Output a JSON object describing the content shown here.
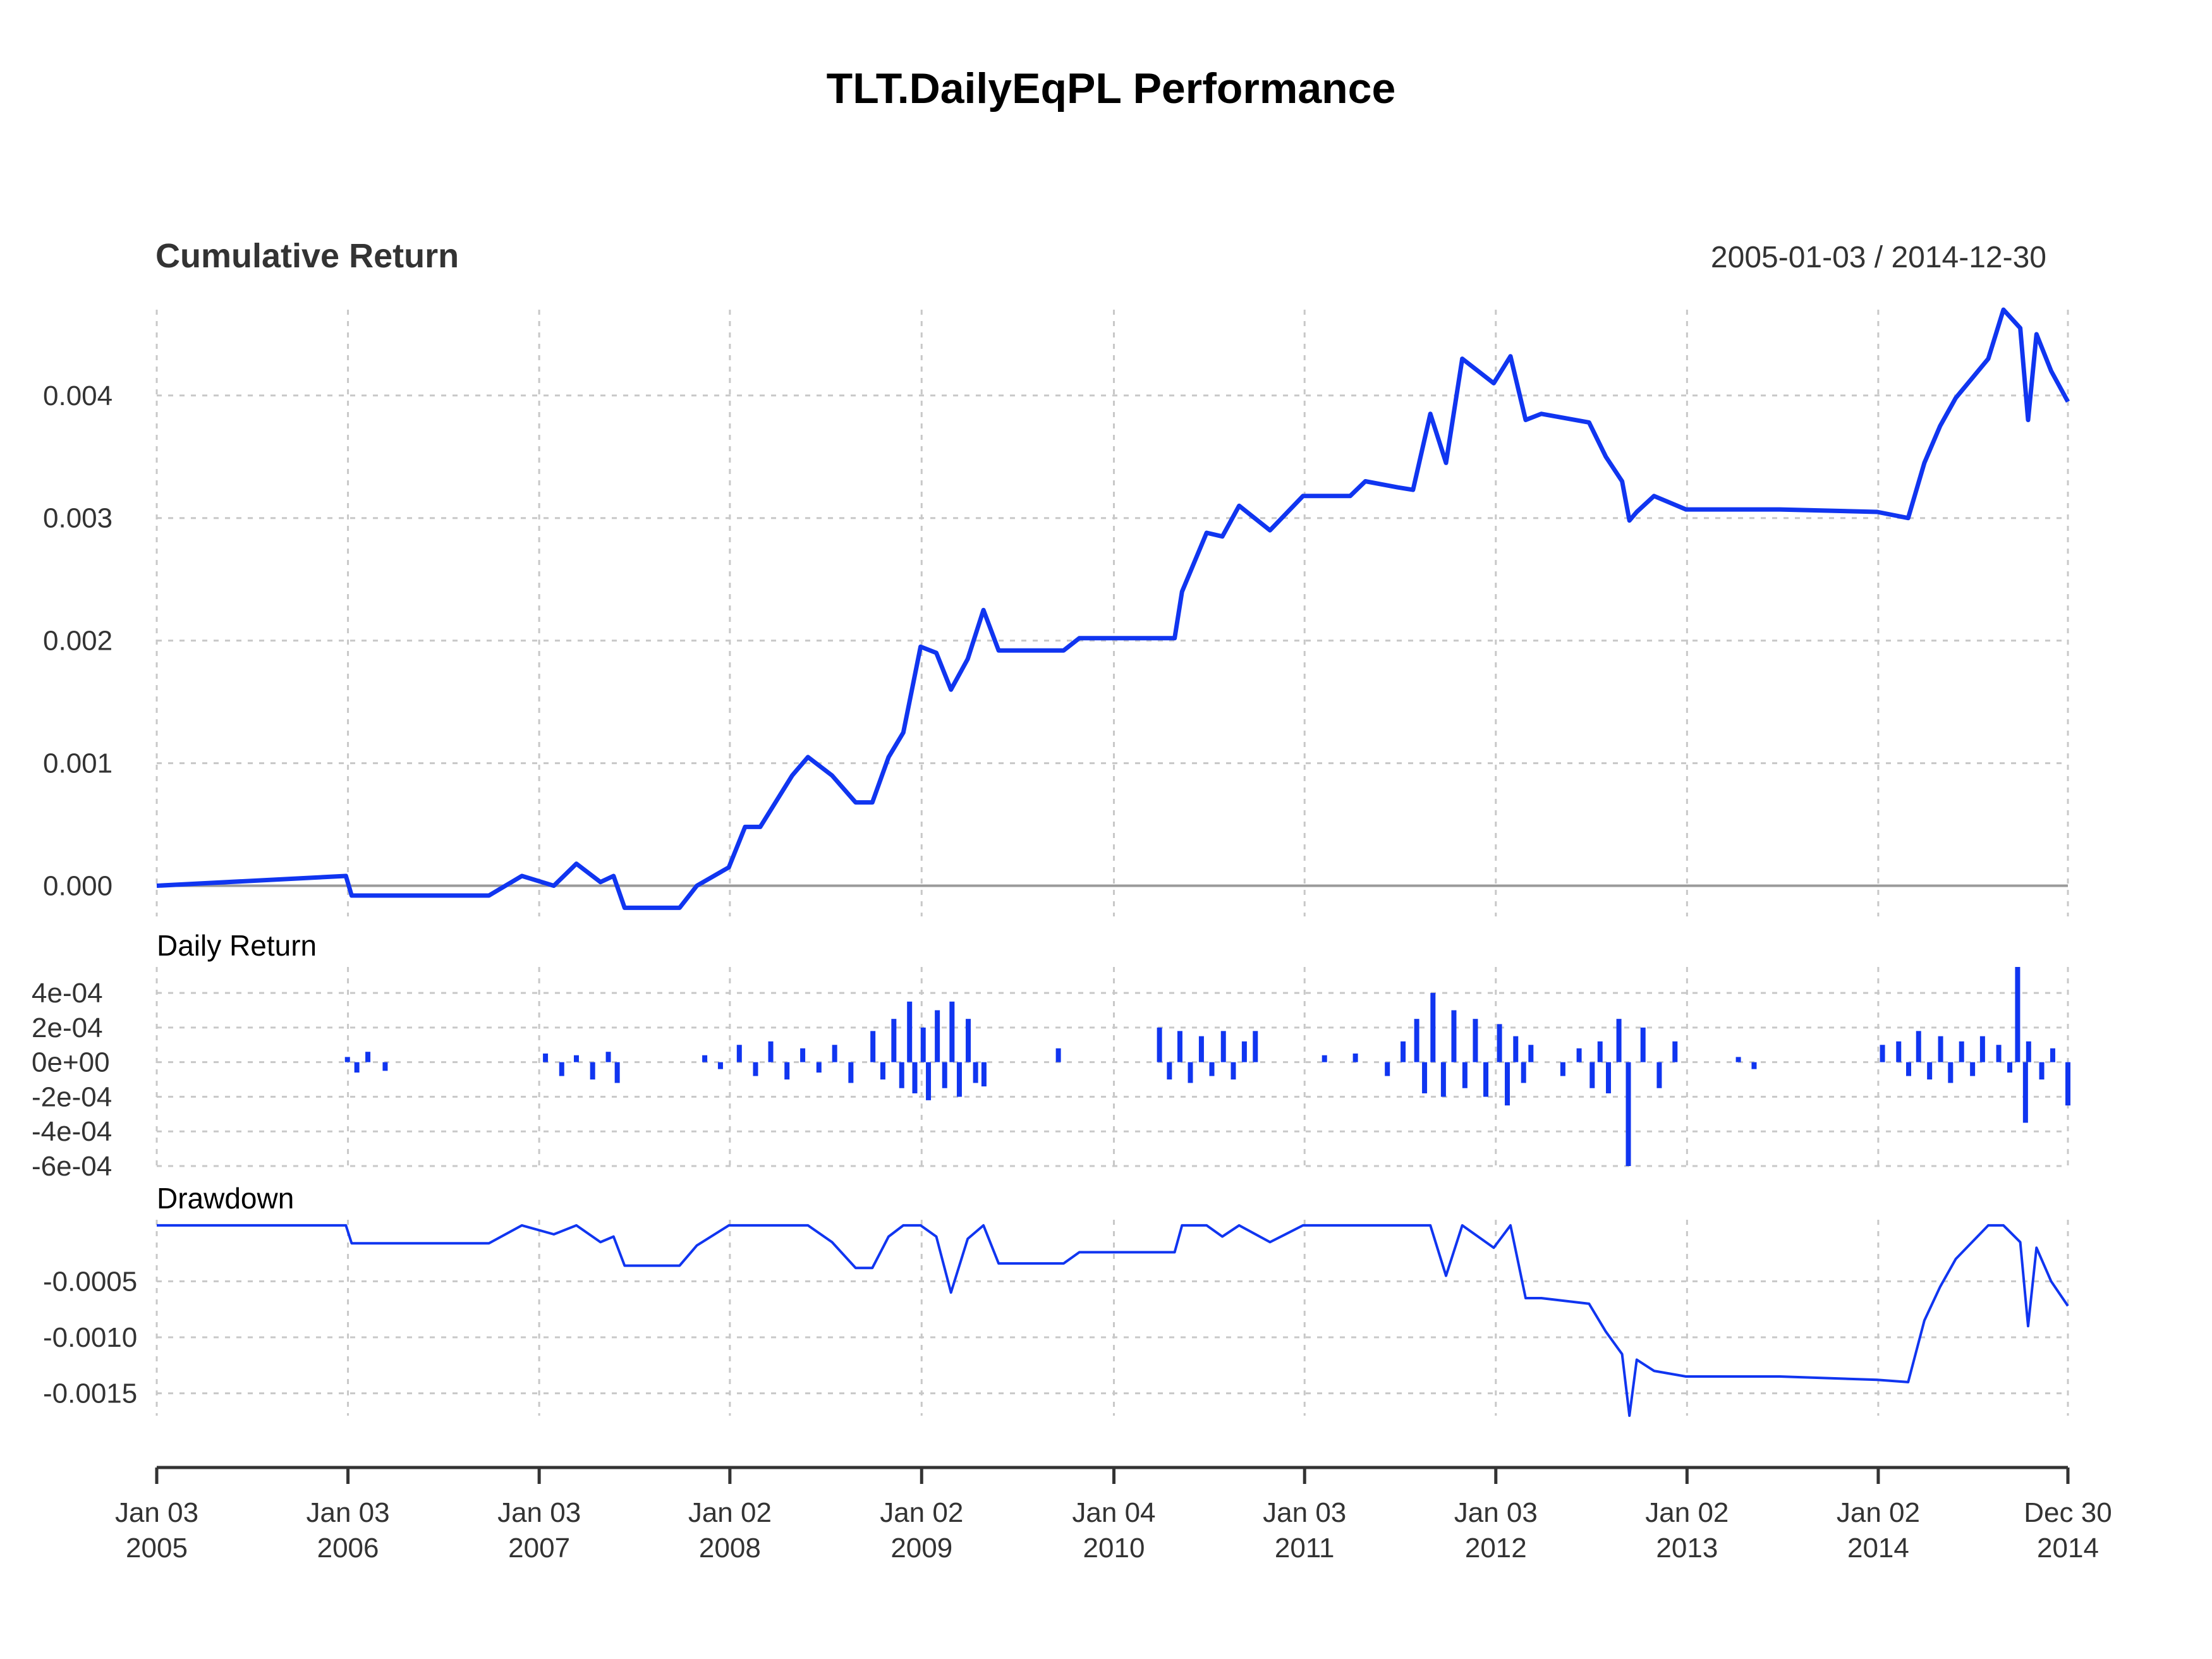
{
  "title": "TLT.DailyEqPL Performance",
  "colors": {
    "series": "#1035f0",
    "grid": "#c8c8c8",
    "zero": "#9a9a9a",
    "text": "#333333"
  },
  "panels": {
    "cumulative": {
      "title": "Cumulative Return",
      "date_range": "2005-01-03 / 2014-12-30"
    },
    "daily": {
      "title": "Daily Return"
    },
    "drawdown": {
      "title": "Drawdown"
    }
  },
  "chart_data": [
    {
      "type": "line",
      "title": "Cumulative Return",
      "series_color": "#1035f0",
      "x": [
        "2005-01-03",
        "2005-12-30",
        "2006-01-10",
        "2006-03-31",
        "2006-06-30",
        "2006-09-29",
        "2006-12-01",
        "2007-01-31",
        "2007-03-15",
        "2007-04-30",
        "2007-05-25",
        "2007-06-15",
        "2007-07-15",
        "2007-09-28",
        "2007-10-31",
        "2007-12-31",
        "2008-01-31",
        "2008-02-29",
        "2008-04-30",
        "2008-05-30",
        "2008-07-15",
        "2008-08-29",
        "2008-09-30",
        "2008-10-31",
        "2008-11-28",
        "2008-12-31",
        "2009-01-30",
        "2009-02-27",
        "2009-03-31",
        "2009-04-30",
        "2009-05-29",
        "2009-09-30",
        "2009-10-30",
        "2010-01-04",
        "2010-04-30",
        "2010-05-14",
        "2010-06-30",
        "2010-07-30",
        "2010-08-31",
        "2010-10-29",
        "2010-12-31",
        "2011-03-31",
        "2011-04-29",
        "2011-06-30",
        "2011-07-29",
        "2011-08-31",
        "2011-09-30",
        "2011-10-31",
        "2011-12-30",
        "2012-01-31",
        "2012-02-29",
        "2012-03-30",
        "2012-06-29",
        "2012-07-31",
        "2012-08-31",
        "2012-09-14",
        "2012-09-28",
        "2012-10-31",
        "2012-12-31",
        "2013-03-29",
        "2013-06-28",
        "2013-12-31",
        "2014-02-28",
        "2014-03-31",
        "2014-04-30",
        "2014-05-30",
        "2014-07-31",
        "2014-08-29",
        "2014-09-30",
        "2014-10-15",
        "2014-10-31",
        "2014-11-28",
        "2014-12-30"
      ],
      "y": [
        0.0,
        8e-05,
        -8e-05,
        -8e-05,
        -8e-05,
        -8e-05,
        8e-05,
        0.0,
        0.00018,
        3e-05,
        8e-05,
        -0.00018,
        -0.00018,
        -0.00018,
        0.0,
        0.00015,
        0.00048,
        0.00048,
        0.0009,
        0.00105,
        0.0009,
        0.00068,
        0.00068,
        0.00105,
        0.00125,
        0.00195,
        0.0019,
        0.0016,
        0.00185,
        0.00225,
        0.00192,
        0.00192,
        0.00202,
        0.00202,
        0.00202,
        0.0024,
        0.00288,
        0.00285,
        0.0031,
        0.0029,
        0.00318,
        0.00318,
        0.0033,
        0.00325,
        0.00323,
        0.00385,
        0.00345,
        0.0043,
        0.0041,
        0.00432,
        0.0038,
        0.00385,
        0.00378,
        0.0035,
        0.0033,
        0.00298,
        0.00305,
        0.00318,
        0.00307,
        0.00307,
        0.00307,
        0.00305,
        0.003,
        0.00345,
        0.00375,
        0.00398,
        0.0043,
        0.0047,
        0.00455,
        0.0038,
        0.0045,
        0.0042,
        0.00395
      ],
      "ylim": [
        -0.00025,
        0.0047
      ],
      "yticks": [
        "0.000",
        "0.001",
        "0.002",
        "0.003",
        "0.004"
      ],
      "ytick_values": [
        0,
        0.001,
        0.002,
        0.003,
        0.004
      ],
      "xticks": [
        {
          "date": "2005-01-03",
          "label": "Jan 03",
          "year": "2005"
        },
        {
          "date": "2006-01-03",
          "label": "Jan 03",
          "year": "2006"
        },
        {
          "date": "2007-01-03",
          "label": "Jan 03",
          "year": "2007"
        },
        {
          "date": "2008-01-02",
          "label": "Jan 02",
          "year": "2008"
        },
        {
          "date": "2009-01-02",
          "label": "Jan 02",
          "year": "2009"
        },
        {
          "date": "2010-01-04",
          "label": "Jan 04",
          "year": "2010"
        },
        {
          "date": "2011-01-03",
          "label": "Jan 03",
          "year": "2011"
        },
        {
          "date": "2012-01-03",
          "label": "Jan 03",
          "year": "2012"
        },
        {
          "date": "2013-01-02",
          "label": "Jan 02",
          "year": "2013"
        },
        {
          "date": "2014-01-02",
          "label": "Jan 02",
          "year": "2014"
        },
        {
          "date": "2014-12-30",
          "label": "Dec 30",
          "year": "2014"
        }
      ],
      "grid": true
    },
    {
      "type": "bar",
      "title": "Daily Return",
      "series_color": "#1035f0",
      "x": [
        "2006-01-02",
        "2006-01-20",
        "2006-02-10",
        "2006-03-15",
        "2007-01-15",
        "2007-02-15",
        "2007-03-15",
        "2007-04-15",
        "2007-05-15",
        "2007-06-01",
        "2007-11-15",
        "2007-12-15",
        "2008-01-20",
        "2008-02-20",
        "2008-03-20",
        "2008-04-20",
        "2008-05-20",
        "2008-06-20",
        "2008-07-20",
        "2008-08-20",
        "2008-10-01",
        "2008-10-20",
        "2008-11-10",
        "2008-11-25",
        "2008-12-10",
        "2008-12-20",
        "2009-01-05",
        "2009-01-15",
        "2009-02-01",
        "2009-02-15",
        "2009-03-01",
        "2009-03-15",
        "2009-04-01",
        "2009-04-15",
        "2009-05-01",
        "2009-09-20",
        "2010-04-01",
        "2010-04-20",
        "2010-05-10",
        "2010-05-30",
        "2010-06-20",
        "2010-07-10",
        "2010-08-01",
        "2010-08-20",
        "2010-09-10",
        "2010-10-01",
        "2011-02-10",
        "2011-04-10",
        "2011-06-10",
        "2011-07-10",
        "2011-08-05",
        "2011-08-20",
        "2011-09-05",
        "2011-09-25",
        "2011-10-15",
        "2011-11-05",
        "2011-11-25",
        "2011-12-15",
        "2012-01-10",
        "2012-01-25",
        "2012-02-10",
        "2012-02-25",
        "2012-03-10",
        "2012-05-10",
        "2012-06-10",
        "2012-07-05",
        "2012-07-20",
        "2012-08-05",
        "2012-08-25",
        "2012-09-12",
        "2012-10-10",
        "2012-11-10",
        "2012-12-10",
        "2013-04-10",
        "2013-05-10",
        "2014-01-10",
        "2014-02-10",
        "2014-03-01",
        "2014-03-20",
        "2014-04-10",
        "2014-05-01",
        "2014-05-20",
        "2014-06-10",
        "2014-07-01",
        "2014-07-20",
        "2014-08-20",
        "2014-09-10",
        "2014-09-25",
        "2014-10-10",
        "2014-10-16",
        "2014-11-10",
        "2014-12-01",
        "2014-12-30"
      ],
      "values": [
        3e-05,
        -6e-05,
        6e-05,
        -5e-05,
        5e-05,
        -8e-05,
        4e-05,
        -0.0001,
        6e-05,
        -0.00012,
        4e-05,
        -4e-05,
        0.0001,
        -8e-05,
        0.00012,
        -0.0001,
        8e-05,
        -6e-05,
        0.0001,
        -0.00012,
        0.00018,
        -0.0001,
        0.00025,
        -0.00015,
        0.00035,
        -0.00018,
        0.0002,
        -0.00022,
        0.0003,
        -0.00015,
        0.00035,
        -0.0002,
        0.00025,
        -0.00012,
        -0.00014,
        8e-05,
        0.0002,
        -0.0001,
        0.00018,
        -0.00012,
        0.00015,
        -8e-05,
        0.00018,
        -0.0001,
        0.00012,
        0.00018,
        4e-05,
        5e-05,
        -8e-05,
        0.00012,
        0.00025,
        -0.00018,
        0.0004,
        -0.0002,
        0.0003,
        -0.00015,
        0.00025,
        -0.0002,
        0.00022,
        -0.00025,
        0.00015,
        -0.00012,
        0.0001,
        -8e-05,
        8e-05,
        -0.00015,
        0.00012,
        -0.00018,
        0.00025,
        -0.0006,
        0.0002,
        -0.00015,
        0.00012,
        3e-05,
        -4e-05,
        0.0001,
        0.00012,
        -8e-05,
        0.00018,
        -0.0001,
        0.00015,
        -0.00012,
        0.00012,
        -8e-05,
        0.00015,
        0.0001,
        -6e-05,
        0.00055,
        -0.00035,
        0.00012,
        -0.0001,
        8e-05,
        -0.00025
      ],
      "ylim": [
        -0.0006,
        0.00055
      ],
      "yticks": [
        "4e-04",
        "2e-04",
        "0e+00",
        "-2e-04",
        "-4e-04",
        "-6e-04"
      ],
      "ytick_values": [
        0.0004,
        0.0002,
        0,
        -0.0002,
        -0.0004,
        -0.0006
      ],
      "grid": true
    },
    {
      "type": "line",
      "title": "Drawdown",
      "series_color": "#1035f0",
      "x": [
        "2005-01-03",
        "2005-12-30",
        "2006-01-10",
        "2006-03-31",
        "2006-09-29",
        "2006-12-01",
        "2007-01-31",
        "2007-03-15",
        "2007-04-30",
        "2007-05-25",
        "2007-06-15",
        "2007-09-28",
        "2007-10-31",
        "2007-12-31",
        "2008-01-31",
        "2008-04-30",
        "2008-05-30",
        "2008-07-15",
        "2008-08-29",
        "2008-09-30",
        "2008-10-31",
        "2008-11-28",
        "2008-12-31",
        "2009-01-30",
        "2009-02-27",
        "2009-03-31",
        "2009-04-30",
        "2009-05-29",
        "2009-09-30",
        "2009-10-30",
        "2010-04-30",
        "2010-05-14",
        "2010-06-30",
        "2010-07-30",
        "2010-08-31",
        "2010-10-29",
        "2010-12-31",
        "2011-06-30",
        "2011-08-31",
        "2011-09-30",
        "2011-10-31",
        "2011-12-30",
        "2012-01-31",
        "2012-02-29",
        "2012-03-30",
        "2012-06-29",
        "2012-07-31",
        "2012-08-31",
        "2012-09-14",
        "2012-09-28",
        "2012-10-31",
        "2012-12-31",
        "2013-06-28",
        "2013-12-31",
        "2014-02-28",
        "2014-03-31",
        "2014-04-30",
        "2014-05-30",
        "2014-07-31",
        "2014-08-29",
        "2014-09-30",
        "2014-10-15",
        "2014-10-31",
        "2014-11-28",
        "2014-12-30"
      ],
      "y": [
        0.0,
        0.0,
        -0.00016,
        -0.00016,
        -0.00016,
        0.0,
        -8e-05,
        0.0,
        -0.00015,
        -0.0001,
        -0.00036,
        -0.00036,
        -0.00018,
        0.0,
        0.0,
        0.0,
        0.0,
        -0.00015,
        -0.00038,
        -0.00038,
        -0.0001,
        0.0,
        0.0,
        -0.0001,
        -0.0006,
        -0.00012,
        0.0,
        -0.00034,
        -0.00034,
        -0.00024,
        -0.00024,
        0.0,
        0.0,
        -0.0001,
        0.0,
        -0.00015,
        0.0,
        0.0,
        0.0,
        -0.00045,
        0.0,
        -0.0002,
        0.0,
        -0.00065,
        -0.00065,
        -0.0007,
        -0.00095,
        -0.00115,
        -0.0017,
        -0.0012,
        -0.0013,
        -0.00135,
        -0.00135,
        -0.00138,
        -0.0014,
        -0.00085,
        -0.00055,
        -0.0003,
        0.0,
        0.0,
        -0.00015,
        -0.0009,
        -0.0002,
        -0.0005,
        -0.00072
      ],
      "ylim": [
        -0.0017,
        5e-05
      ],
      "yticks": [
        "-0.0005",
        "-0.0010",
        "-0.0015"
      ],
      "ytick_values": [
        -0.0005,
        -0.001,
        -0.0015
      ],
      "grid": true
    }
  ]
}
